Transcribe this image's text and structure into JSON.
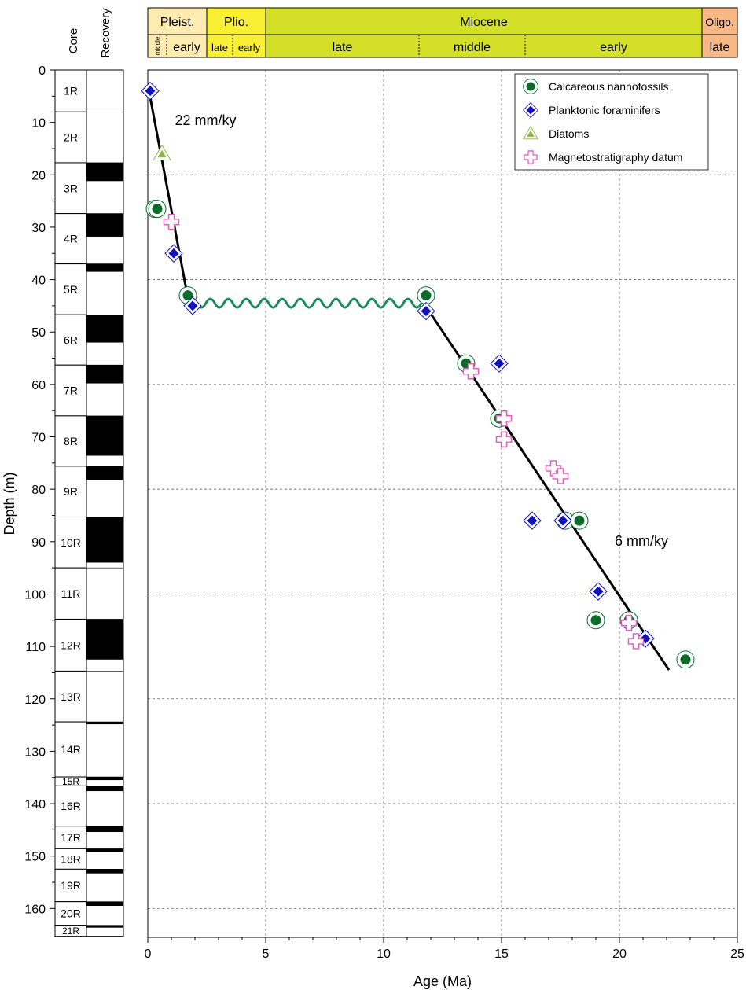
{
  "chart_data": {
    "type": "scatter",
    "xlabel": "Age (Ma)",
    "ylabel": "Depth (m)",
    "xlim": [
      0,
      25
    ],
    "ylim": [
      165.5,
      0
    ],
    "x_ticks": [
      0,
      5,
      10,
      15,
      20,
      25
    ],
    "y_ticks": [
      0,
      10,
      20,
      30,
      40,
      50,
      60,
      70,
      80,
      90,
      100,
      110,
      120,
      130,
      140,
      150,
      160
    ],
    "grid": true,
    "legend_position": "top-right",
    "legend": [
      {
        "name": "Calcareous nannofossils",
        "marker": "circle"
      },
      {
        "name": "Planktonic foraminifers",
        "marker": "diamond"
      },
      {
        "name": "Diatoms",
        "marker": "triangle"
      },
      {
        "name": "Magnetostratigraphy datum",
        "marker": "cross"
      }
    ],
    "series": [
      {
        "name": "Calcareous nannofossils",
        "marker": "circle",
        "color": "#0a6b2a",
        "points": [
          [
            0.3,
            26.5
          ],
          [
            0.4,
            26.5
          ],
          [
            1.7,
            43
          ],
          [
            11.8,
            43
          ],
          [
            13.5,
            56
          ],
          [
            14.9,
            66.5
          ],
          [
            17.7,
            86
          ],
          [
            18.3,
            86
          ],
          [
            19.0,
            105
          ],
          [
            20.4,
            105
          ],
          [
            22.8,
            112.5
          ]
        ]
      },
      {
        "name": "Planktonic foraminifers",
        "marker": "diamond",
        "color": "#1010c0",
        "points": [
          [
            0.1,
            4
          ],
          [
            1.1,
            35
          ],
          [
            1.9,
            45
          ],
          [
            11.8,
            46
          ],
          [
            14.9,
            56
          ],
          [
            16.3,
            86
          ],
          [
            17.6,
            86
          ],
          [
            19.1,
            99.5
          ],
          [
            21.1,
            108.5
          ]
        ]
      },
      {
        "name": "Diatoms",
        "marker": "triangle",
        "color": "#8bb840",
        "points": [
          [
            0.6,
            16
          ]
        ]
      },
      {
        "name": "Magnetostratigraphy datum",
        "marker": "cross",
        "color": "#e060c0",
        "points": [
          [
            1.0,
            29
          ],
          [
            13.7,
            57.5
          ],
          [
            15.1,
            66.5
          ],
          [
            15.1,
            70.5
          ],
          [
            17.2,
            76
          ],
          [
            17.5,
            77.5
          ],
          [
            20.4,
            105.5
          ],
          [
            20.7,
            109
          ]
        ]
      }
    ],
    "trend_lines": [
      {
        "label": "22 mm/ky",
        "points": [
          [
            0.05,
            4
          ],
          [
            1.7,
            43.5
          ]
        ]
      },
      {
        "label": "6 mm/ky",
        "points": [
          [
            11.7,
            44.5
          ],
          [
            22.1,
            114.5
          ]
        ]
      }
    ],
    "hiatus": {
      "from": [
        1.7,
        44.5
      ],
      "to": [
        11.6,
        44.5
      ],
      "color": "#1a8a5a"
    },
    "rate_labels": [
      "22 mm/ky",
      "6 mm/ky"
    ],
    "timescale": {
      "epochs": [
        {
          "name": "Pleist.",
          "start": 0,
          "end": 2.5,
          "color": "#fdebb0"
        },
        {
          "name": "Plio.",
          "start": 2.5,
          "end": 5,
          "color": "#f9f033"
        },
        {
          "name": "Miocene",
          "start": 5,
          "end": 23.5,
          "color": "#d4e027"
        },
        {
          "name": "Oligo.",
          "start": 23.5,
          "end": 25,
          "color": "#f8b886"
        }
      ],
      "subdivisions": [
        {
          "name": "middle",
          "start": 0,
          "end": 0.8,
          "epoch": 0
        },
        {
          "name": "early",
          "start": 0.8,
          "end": 2.5,
          "epoch": 0
        },
        {
          "name": "late",
          "start": 2.5,
          "end": 3.6,
          "epoch": 1
        },
        {
          "name": "early",
          "start": 3.6,
          "end": 5,
          "epoch": 1
        },
        {
          "name": "late",
          "start": 5,
          "end": 11.5,
          "epoch": 2
        },
        {
          "name": "middle",
          "start": 11.5,
          "end": 16,
          "epoch": 2
        },
        {
          "name": "early",
          "start": 16,
          "end": 23.5,
          "epoch": 2
        },
        {
          "name": "late",
          "start": 23.5,
          "end": 25,
          "epoch": 3
        }
      ]
    },
    "cores": {
      "column_labels": [
        "Core",
        "Recovery"
      ],
      "items": [
        {
          "name": "1R",
          "top": 0,
          "bottom": 8
        },
        {
          "name": "2R",
          "top": 8,
          "bottom": 17.7
        },
        {
          "name": "3R",
          "top": 17.7,
          "bottom": 27.4
        },
        {
          "name": "4R",
          "top": 27.4,
          "bottom": 37
        },
        {
          "name": "5R",
          "top": 37,
          "bottom": 46.7
        },
        {
          "name": "6R",
          "top": 46.7,
          "bottom": 56.3
        },
        {
          "name": "7R",
          "top": 56.3,
          "bottom": 66
        },
        {
          "name": "8R",
          "top": 66,
          "bottom": 75.6
        },
        {
          "name": "9R",
          "top": 75.6,
          "bottom": 85.3
        },
        {
          "name": "10R",
          "top": 85.3,
          "bottom": 95
        },
        {
          "name": "11R",
          "top": 95,
          "bottom": 104.8
        },
        {
          "name": "12R",
          "top": 104.8,
          "bottom": 114.7
        },
        {
          "name": "13R",
          "top": 114.7,
          "bottom": 124.4
        },
        {
          "name": "14R",
          "top": 124.4,
          "bottom": 134.9
        },
        {
          "name": "15R",
          "top": 134.9,
          "bottom": 136.6
        },
        {
          "name": "16R",
          "top": 136.6,
          "bottom": 144.3
        },
        {
          "name": "17R",
          "top": 144.3,
          "bottom": 148.6
        },
        {
          "name": "18R",
          "top": 148.6,
          "bottom": 152.5
        },
        {
          "name": "19R",
          "top": 152.5,
          "bottom": 158.7
        },
        {
          "name": "20R",
          "top": 158.7,
          "bottom": 163.2
        },
        {
          "name": "21R",
          "top": 163.2,
          "bottom": 165.3
        }
      ],
      "recovery": [
        [
          17.7,
          21.2
        ],
        [
          27.4,
          31.8
        ],
        [
          37,
          38.5
        ],
        [
          46.7,
          52
        ],
        [
          56.3,
          59.8
        ],
        [
          66,
          73.6
        ],
        [
          75.6,
          78.2
        ],
        [
          85.3,
          94
        ],
        [
          104.8,
          112.5
        ],
        [
          124.4,
          124.7
        ],
        [
          134.9,
          135.5
        ],
        [
          136.6,
          137.6
        ],
        [
          144.3,
          145.4
        ],
        [
          148.6,
          149.2
        ],
        [
          152.5,
          153.3
        ],
        [
          158.7,
          159.5
        ],
        [
          163.2,
          163.6
        ]
      ]
    }
  }
}
